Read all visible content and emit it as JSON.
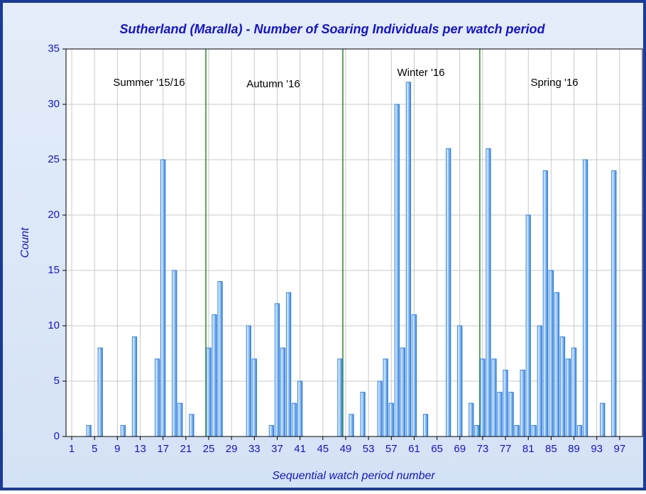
{
  "chart_data": {
    "type": "bar",
    "title": "Sutherland (Maralla) - Number of Soaring Individuals per watch period",
    "xlabel": "Sequential watch period number",
    "ylabel": "Count",
    "x": [
      4,
      6,
      10,
      12,
      16,
      17,
      19,
      20,
      22,
      25,
      26,
      27,
      32,
      33,
      36,
      37,
      38,
      39,
      40,
      41,
      48,
      50,
      52,
      55,
      56,
      57,
      58,
      59,
      60,
      61,
      63,
      67,
      69,
      71,
      72,
      73,
      74,
      75,
      76,
      77,
      78,
      79,
      80,
      81,
      82,
      83,
      84,
      85,
      86,
      87,
      88,
      89,
      90,
      91,
      94,
      96
    ],
    "values": [
      1,
      8,
      1,
      9,
      7,
      25,
      15,
      3,
      2,
      8,
      11,
      14,
      10,
      7,
      1,
      12,
      8,
      13,
      3,
      5,
      7,
      2,
      4,
      5,
      7,
      3,
      30,
      8,
      32,
      11,
      2,
      26,
      10,
      3,
      1,
      7,
      26,
      7,
      4,
      6,
      4,
      1,
      6,
      20,
      1,
      10,
      24,
      15,
      13,
      9,
      7,
      8,
      1,
      25,
      3,
      24
    ],
    "color": "#2f7fe0",
    "xlim": [
      0,
      101
    ],
    "xticks": [
      1,
      5,
      9,
      13,
      17,
      21,
      25,
      29,
      33,
      37,
      41,
      45,
      49,
      53,
      57,
      61,
      65,
      69,
      73,
      77,
      81,
      85,
      89,
      93,
      97
    ],
    "ylim": [
      0,
      35
    ],
    "yticks": [
      0,
      5,
      10,
      15,
      20,
      25,
      30,
      35
    ],
    "grid": true,
    "separators": [
      24.5,
      48.5,
      72.5
    ],
    "separator_color": "#2a8a2a",
    "annotations": [
      "Summer '15/16",
      "Autumn '16",
      "Winter '16",
      "Spring '16"
    ]
  }
}
